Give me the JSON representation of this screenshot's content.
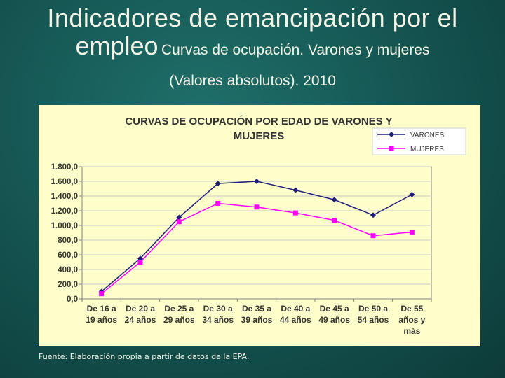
{
  "slide": {
    "title_main_1": "Indicadores de emancipación por el",
    "title_main_2": "empleo",
    "title_sub_1": "Curvas de ocupación. Varones y mujeres",
    "title_sub_2": "(Valores absolutos). 2010",
    "source": "Fuente: Elaboración propia a partir de datos de la EPA."
  },
  "colors": {
    "varones": "#1f1f7a",
    "mujeres": "#ff00ff",
    "panel": "#ffffcc",
    "plot": "#ffffcc"
  },
  "chart_data": {
    "type": "line",
    "title": "CURVAS DE OCUPACIÓN POR EDAD DE VARONES Y MUJERES",
    "title_lines": [
      "CURVAS DE OCUPACIÓN POR EDAD DE VARONES Y",
      "MUJERES"
    ],
    "categories": [
      [
        "De 16 a",
        "19 años"
      ],
      [
        "De 20 a",
        "24 años"
      ],
      [
        "De 25 a",
        "29 años"
      ],
      [
        "De 30 a",
        "34 años"
      ],
      [
        "De 35 a",
        "39 años"
      ],
      [
        "De 40 a",
        "44 años"
      ],
      [
        "De 45 a",
        "49 años"
      ],
      [
        "De 50 a",
        "54 años"
      ],
      [
        "De 55",
        "años y",
        "más"
      ]
    ],
    "series": [
      {
        "name": "VARONES",
        "values": [
          100,
          550,
          1110,
          1570,
          1600,
          1480,
          1350,
          1140,
          1420
        ]
      },
      {
        "name": "MUJERES",
        "values": [
          70,
          500,
          1050,
          1300,
          1250,
          1170,
          1070,
          860,
          910
        ]
      }
    ],
    "ylim": [
      0,
      1800
    ],
    "yticks": [
      "1.800,0",
      "1.600,0",
      "1.400,0",
      "1.200,0",
      "1.000,0",
      "800,0",
      "600,0",
      "400,0",
      "200,0",
      "0,0"
    ],
    "ytick_values": [
      1800,
      1600,
      1400,
      1200,
      1000,
      800,
      600,
      400,
      200,
      0
    ],
    "grid": true,
    "legend_position": "top-right"
  }
}
